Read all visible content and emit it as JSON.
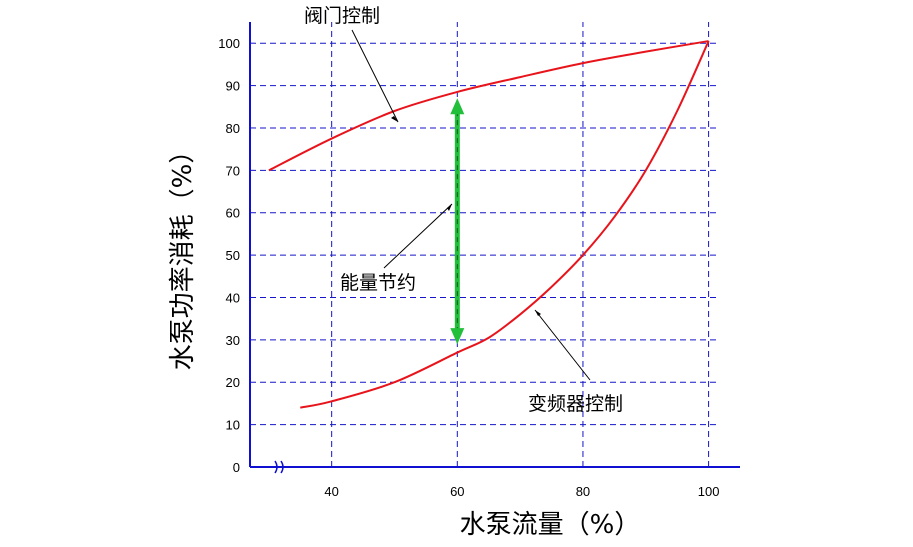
{
  "chart_data": {
    "type": "line",
    "xlabel": "水泵流量（%）",
    "ylabel": "水泵功率消耗（%）",
    "x_ticks": [
      40,
      60,
      80,
      100
    ],
    "y_ticks": [
      0,
      10,
      20,
      30,
      40,
      50,
      60,
      70,
      80,
      90,
      100
    ],
    "xlim": [
      27,
      105
    ],
    "ylim": [
      0,
      105
    ],
    "grid": true,
    "axis_break_on_x": true,
    "series": [
      {
        "name": "阀门控制",
        "x": [
          30,
          40,
          50,
          60,
          70,
          80,
          90,
          100
        ],
        "y": [
          70,
          77.5,
          84,
          88.5,
          92,
          95.3,
          98,
          100.5
        ]
      },
      {
        "name": "变频器控制",
        "x": [
          35,
          40,
          50,
          60,
          65,
          70,
          75,
          80,
          85,
          90,
          95,
          100
        ],
        "y": [
          14,
          15.5,
          20,
          27,
          30.5,
          36,
          42.5,
          50,
          59,
          70,
          84,
          100.5
        ]
      }
    ],
    "annotations": [
      {
        "text": "阀门控制"
      },
      {
        "text": "能量节约"
      },
      {
        "text": "变频器控制"
      }
    ],
    "savings_arrow": {
      "x": 60,
      "y_from": 29,
      "y_to": 87
    }
  },
  "colors": {
    "curve": "#e8141c",
    "grid": "#1616c8",
    "axis": "#1010d0",
    "savings_arrow": "#22c03a"
  }
}
